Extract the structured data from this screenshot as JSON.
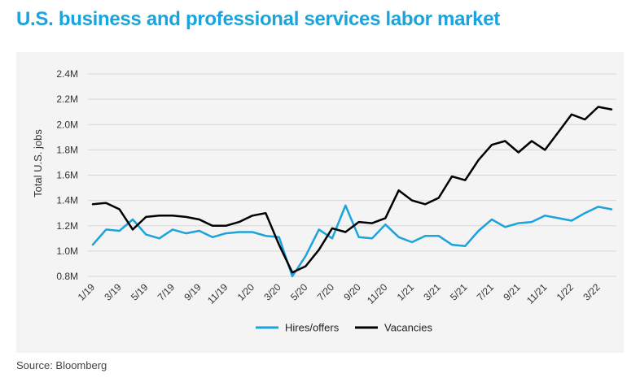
{
  "title": "U.S. business and professional services labor market",
  "source": "Source: Bloomberg",
  "colors": {
    "title": "#1aa3dc",
    "hires": "#1aa3dc",
    "vacancies": "#000000",
    "panel": "#f4f4f4"
  },
  "chart_data": {
    "type": "line",
    "title": "U.S. business and professional services labor market",
    "xlabel": "",
    "ylabel": "Total U.S. jobs",
    "ylim": [
      0.8,
      2.4
    ],
    "yticks": [
      0.8,
      1.0,
      1.2,
      1.4,
      1.6,
      1.8,
      2.0,
      2.2,
      2.4
    ],
    "ytick_labels": [
      "0.8M",
      "1.0M",
      "1.2M",
      "1.4M",
      "1.6M",
      "1.8M",
      "2.0M",
      "2.2M",
      "2.4M"
    ],
    "x": [
      "1/19",
      "2/19",
      "3/19",
      "4/19",
      "5/19",
      "6/19",
      "7/19",
      "8/19",
      "9/19",
      "10/19",
      "11/19",
      "12/19",
      "1/20",
      "2/20",
      "3/20",
      "4/20",
      "5/20",
      "6/20",
      "7/20",
      "8/20",
      "9/20",
      "10/20",
      "11/20",
      "12/20",
      "1/21",
      "2/21",
      "3/21",
      "4/21",
      "5/21",
      "6/21",
      "7/21",
      "8/21",
      "9/21",
      "10/21",
      "11/21",
      "12/21",
      "1/22",
      "2/22",
      "3/22",
      "4/22"
    ],
    "xtick_labels": [
      "1/19",
      "3/19",
      "5/19",
      "7/19",
      "9/19",
      "11/19",
      "1/20",
      "3/20",
      "5/20",
      "7/20",
      "9/20",
      "11/20",
      "1/21",
      "3/21",
      "5/21",
      "7/21",
      "9/21",
      "11/21",
      "1/22",
      "3/22"
    ],
    "grid": true,
    "legend": "bottom-center",
    "series": [
      {
        "name": "Hires/offers",
        "color": "#1aa3dc",
        "values": [
          1.05,
          1.17,
          1.16,
          1.25,
          1.13,
          1.1,
          1.17,
          1.14,
          1.16,
          1.11,
          1.14,
          1.15,
          1.15,
          1.12,
          1.11,
          0.8,
          0.96,
          1.17,
          1.1,
          1.36,
          1.11,
          1.1,
          1.21,
          1.11,
          1.07,
          1.12,
          1.12,
          1.05,
          1.04,
          1.16,
          1.25,
          1.19,
          1.22,
          1.23,
          1.28,
          1.26,
          1.24,
          1.3,
          1.35,
          1.33
        ]
      },
      {
        "name": "Vacancies",
        "color": "#000000",
        "values": [
          1.37,
          1.38,
          1.33,
          1.17,
          1.27,
          1.28,
          1.28,
          1.27,
          1.25,
          1.2,
          1.2,
          1.23,
          1.28,
          1.3,
          1.05,
          0.83,
          0.88,
          1.01,
          1.18,
          1.15,
          1.23,
          1.22,
          1.26,
          1.48,
          1.4,
          1.37,
          1.42,
          1.59,
          1.56,
          1.72,
          1.84,
          1.87,
          1.78,
          1.87,
          1.8,
          1.94,
          2.08,
          2.04,
          2.14,
          2.12
        ]
      }
    ]
  }
}
